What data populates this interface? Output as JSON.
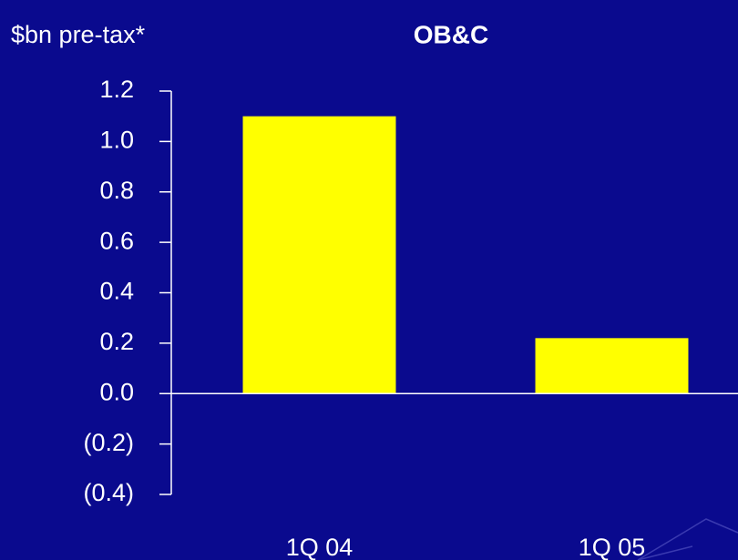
{
  "chart_data": {
    "type": "bar",
    "title": "OB&C",
    "y_label": "$bn pre-tax*",
    "categories": [
      "1Q 04",
      "1Q 05"
    ],
    "values": [
      1.1,
      0.22
    ],
    "color": "#ffff00",
    "ylim": [
      -0.4,
      1.2
    ],
    "yticks": [
      {
        "value": -0.4,
        "label": "(0.4)"
      },
      {
        "value": -0.2,
        "label": "(0.2)"
      },
      {
        "value": 0,
        "label": "0.0"
      },
      0.2,
      0.4,
      0.6,
      0.8,
      {
        "value": 1,
        "label": "1.0"
      },
      1.2
    ]
  }
}
